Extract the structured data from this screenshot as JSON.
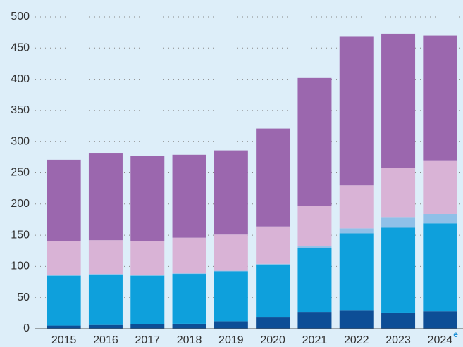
{
  "chart_data": {
    "type": "stacked_bar",
    "categories": [
      "2015",
      "2016",
      "2017",
      "2018",
      "2019",
      "2020",
      "2021",
      "2022",
      "2023",
      "2024"
    ],
    "annotations": [
      {
        "text": "e"
      }
    ],
    "series": [
      {
        "color": "#0d4e96",
        "values": [
          5,
          6,
          7,
          8,
          12,
          18,
          27,
          29,
          26,
          28
        ]
      },
      {
        "color": "#0ea0dc",
        "values": [
          80,
          81,
          78,
          80,
          80,
          85,
          102,
          124,
          136,
          141
        ]
      },
      {
        "color": "#8fc0e8",
        "values": [
          1,
          1,
          1,
          1,
          1,
          1,
          3,
          8,
          16,
          15
        ]
      },
      {
        "color": "#d9b3d6",
        "values": [
          55,
          54,
          55,
          57,
          58,
          60,
          65,
          69,
          80,
          85
        ]
      },
      {
        "color": "#9b67ae",
        "values": [
          130,
          139,
          136,
          133,
          135,
          157,
          205,
          239,
          215,
          201
        ]
      }
    ],
    "ylim": [
      0,
      500
    ],
    "yticks": [
      0,
      50,
      100,
      150,
      200,
      250,
      300,
      350,
      400,
      450,
      500
    ],
    "grid": true
  }
}
